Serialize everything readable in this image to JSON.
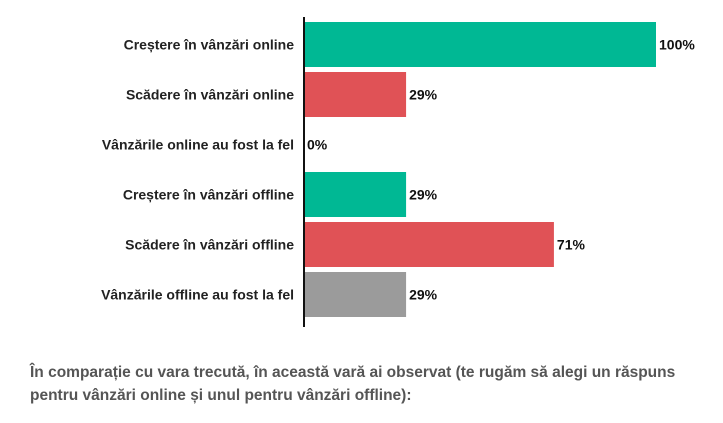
{
  "chart_data": {
    "type": "bar",
    "orientation": "horizontal",
    "categories": [
      "Creștere în vânzări online",
      "Scădere în vânzări online",
      "Vânzările online au fost la fel",
      "Creștere în vânzări offline",
      "Scădere în vânzări offline",
      "Vânzările offline au fost la fel"
    ],
    "values": [
      100,
      29,
      0,
      29,
      71,
      29
    ],
    "value_labels": [
      "100%",
      "29%",
      "0%",
      "29%",
      "71%",
      "29%"
    ],
    "colors": [
      "#00b894",
      "#e05256",
      "#00b894",
      "#00b894",
      "#e05256",
      "#9b9b9b"
    ],
    "xlim": [
      0,
      100
    ],
    "grid": false,
    "legend": "none"
  },
  "caption": "În comparație cu vara trecută, în această vară ai observat (te rugăm să alegi un răspuns pentru vânzări online și unul pentru vânzări offline):"
}
